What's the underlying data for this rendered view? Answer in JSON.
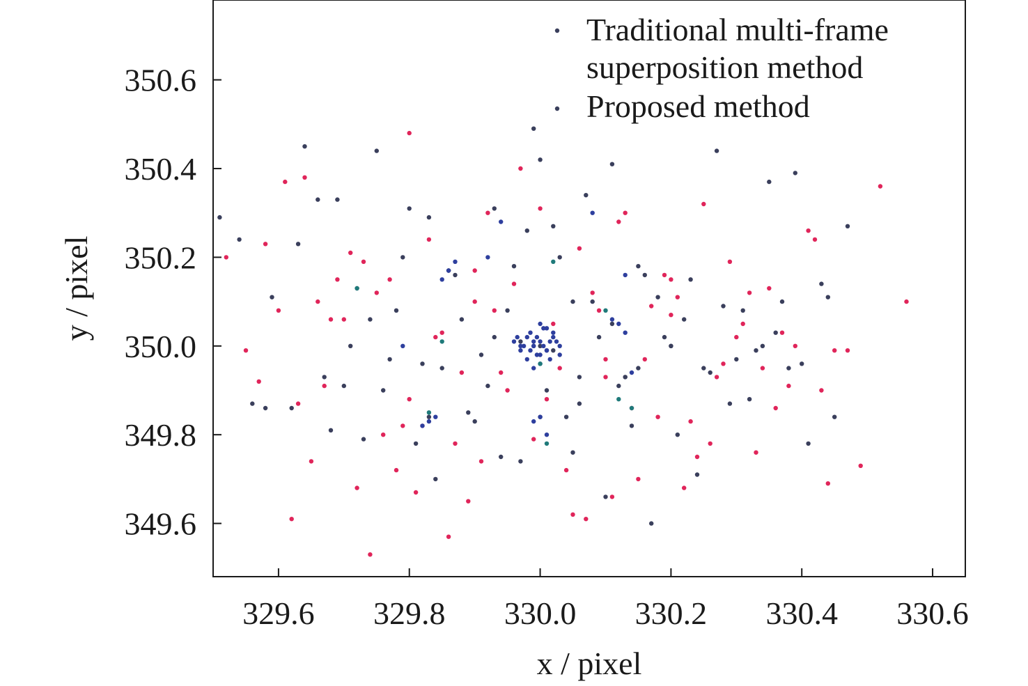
{
  "chart_data": {
    "type": "scatter",
    "xlabel": "x / pixel",
    "ylabel": "y / pixel",
    "xlim": [
      329.5,
      330.65
    ],
    "ylim": [
      349.48,
      350.78
    ],
    "x_ticks": [
      329.6,
      329.8,
      330.0,
      330.2,
      330.4,
      330.6
    ],
    "x_tick_labels": [
      "329.6",
      "329.8",
      "330.0",
      "330.2",
      "330.4",
      "330.6"
    ],
    "y_ticks": [
      349.6,
      349.8,
      350.0,
      350.2,
      350.4,
      350.6
    ],
    "y_tick_labels": [
      "349.6",
      "349.8",
      "350.0",
      "350.2",
      "350.4",
      "350.6"
    ],
    "grid": false,
    "legend": {
      "position": "top-right",
      "entries": [
        {
          "line1": "Traditional multi-frame",
          "line2": "superposition method",
          "color": "#3a3f5c"
        },
        {
          "line1": "Proposed method",
          "line2": "",
          "color": "#3a3f5c"
        }
      ]
    },
    "series": [
      {
        "color": "#e0255a",
        "x": [
          329.52,
          329.55,
          329.58,
          329.62,
          329.61,
          329.65,
          329.66,
          329.64,
          329.68,
          329.72,
          329.74,
          329.75,
          329.78,
          329.77,
          329.8,
          329.82,
          329.84,
          329.86,
          329.88,
          329.9,
          329.92,
          329.95,
          329.97,
          329.99,
          330.02,
          330.05,
          330.08,
          330.1,
          330.12,
          330.15,
          330.18,
          330.2,
          330.22,
          330.25,
          330.27,
          330.3,
          330.33,
          330.35,
          330.38,
          330.41,
          330.45,
          330.49,
          330.52,
          330.56,
          329.63,
          329.7,
          329.76,
          329.83,
          329.89,
          329.94,
          330.0,
          330.04,
          330.09,
          330.14,
          330.19,
          330.24,
          330.29,
          330.34,
          330.39,
          330.44,
          329.6,
          329.67,
          329.73,
          329.79,
          329.85,
          329.91,
          329.96,
          330.01,
          330.06,
          330.11,
          330.16,
          330.21,
          330.26,
          330.31,
          330.36,
          330.42,
          330.47,
          329.57,
          329.69,
          329.81,
          329.93,
          330.03,
          330.13,
          330.23,
          330.32,
          330.43,
          329.71,
          329.87,
          330.07,
          330.17,
          330.28,
          330.37,
          329.8,
          329.9,
          330.1,
          330.2
        ],
        "y": [
          350.2,
          349.99,
          350.23,
          349.61,
          350.37,
          349.74,
          350.1,
          350.38,
          350.06,
          349.68,
          349.53,
          350.12,
          349.72,
          350.15,
          350.48,
          349.82,
          350.02,
          349.57,
          349.94,
          350.17,
          350.3,
          349.9,
          350.4,
          349.79,
          350.05,
          349.62,
          350.12,
          349.97,
          350.28,
          349.7,
          349.84,
          350.07,
          349.68,
          350.32,
          349.93,
          350.02,
          349.76,
          350.13,
          349.91,
          350.26,
          349.99,
          349.73,
          350.36,
          350.1,
          349.87,
          350.06,
          349.8,
          350.24,
          349.65,
          349.94,
          350.31,
          349.72,
          350.08,
          349.86,
          350.16,
          349.75,
          350.19,
          349.95,
          350.0,
          349.69,
          350.08,
          349.91,
          350.19,
          349.82,
          350.03,
          349.74,
          350.14,
          349.88,
          350.22,
          349.66,
          349.97,
          350.11,
          349.78,
          350.05,
          349.86,
          350.24,
          349.99,
          349.92,
          350.15,
          349.67,
          350.08,
          349.95,
          350.3,
          349.83,
          350.12,
          349.9,
          350.21,
          349.78,
          349.61,
          350.09,
          349.96,
          350.03,
          349.88,
          350.1,
          349.93,
          350.15
        ]
      },
      {
        "color": "#3a3f5c",
        "x": [
          329.51,
          329.54,
          329.56,
          329.59,
          329.62,
          329.64,
          329.67,
          329.69,
          329.71,
          329.73,
          329.75,
          329.77,
          329.79,
          329.81,
          329.83,
          329.85,
          329.87,
          329.89,
          329.91,
          329.93,
          329.95,
          329.97,
          329.99,
          330.01,
          330.03,
          330.05,
          330.07,
          330.09,
          330.11,
          330.13,
          330.15,
          330.17,
          330.19,
          330.21,
          330.23,
          330.25,
          330.27,
          330.29,
          330.31,
          330.33,
          330.35,
          330.37,
          330.39,
          330.41,
          330.43,
          330.45,
          330.47,
          329.58,
          329.63,
          329.68,
          329.72,
          329.76,
          329.8,
          329.84,
          329.88,
          329.92,
          329.96,
          330.0,
          330.04,
          330.08,
          330.12,
          330.16,
          330.2,
          330.24,
          330.28,
          330.32,
          330.36,
          330.4,
          330.44,
          329.66,
          329.74,
          329.82,
          329.9,
          329.98,
          330.06,
          330.14,
          330.22,
          330.3,
          330.38,
          329.7,
          329.78,
          329.86,
          329.94,
          330.02,
          330.1,
          330.18,
          330.26,
          330.34,
          329.97,
          330.0,
          330.02,
          330.11,
          330.13,
          329.86,
          329.83,
          329.93,
          330.06,
          330.2,
          330.15,
          330.0,
          330.05,
          329.99
        ],
        "y": [
          350.29,
          350.24,
          349.87,
          350.11,
          349.86,
          350.45,
          349.93,
          350.33,
          350.0,
          349.79,
          350.44,
          349.97,
          350.2,
          349.78,
          350.29,
          349.95,
          350.16,
          349.85,
          349.98,
          350.31,
          350.08,
          349.74,
          350.49,
          349.9,
          350.2,
          349.76,
          350.34,
          350.02,
          350.41,
          349.93,
          350.18,
          349.6,
          350.02,
          349.8,
          350.15,
          349.95,
          350.44,
          349.87,
          350.08,
          349.99,
          350.37,
          350.1,
          350.39,
          349.78,
          350.14,
          349.84,
          350.27,
          349.86,
          350.23,
          349.81,
          350.13,
          349.9,
          350.31,
          349.7,
          350.06,
          349.91,
          350.18,
          350.42,
          349.84,
          350.1,
          349.91,
          350.16,
          350.0,
          349.71,
          350.09,
          349.88,
          350.03,
          349.96,
          350.11,
          350.33,
          350.06,
          349.96,
          349.83,
          350.26,
          349.93,
          349.82,
          350.06,
          349.97,
          349.95,
          349.91,
          350.08,
          350.17,
          349.75,
          350.27,
          349.66,
          350.11,
          349.94,
          350.0,
          350.01,
          350.0,
          349.99,
          350.05,
          349.93,
          350.17,
          349.84,
          350.02,
          349.87,
          350.0,
          349.95,
          349.84,
          350.1,
          350.0
        ]
      },
      {
        "color": "#2e3f9e",
        "x": [
          329.96,
          329.97,
          329.98,
          329.99,
          330.0,
          330.01,
          330.02,
          330.03,
          329.985,
          329.995,
          330.005,
          330.015,
          329.975,
          330.025,
          329.965,
          330.0,
          329.99,
          330.01,
          329.98,
          330.02,
          329.97,
          330.03,
          329.995,
          330.005,
          329.985,
          330.015,
          330.0,
          330.0,
          329.99,
          330.01,
          329.86,
          329.85,
          329.87,
          330.12,
          330.13,
          330.11,
          330.14,
          329.84,
          329.83,
          330.0,
          330.01,
          329.99,
          329.82,
          329.94,
          330.08,
          330.13,
          329.92,
          329.79
        ],
        "y": [
          350.01,
          349.99,
          350.02,
          350.0,
          350.01,
          349.99,
          350.02,
          350.0,
          350.03,
          349.98,
          350.04,
          349.97,
          350.0,
          350.01,
          350.02,
          349.98,
          350.01,
          349.99,
          349.97,
          350.03,
          350.0,
          349.98,
          350.02,
          350.0,
          349.99,
          350.01,
          350.05,
          349.96,
          349.95,
          350.04,
          350.17,
          350.15,
          350.19,
          350.05,
          350.03,
          350.06,
          349.94,
          349.84,
          349.83,
          349.84,
          349.8,
          349.83,
          349.82,
          350.28,
          350.3,
          350.16,
          350.2,
          350.0
        ]
      },
      {
        "color": "#1f7a7a",
        "x": [
          330.02,
          330.01,
          329.83,
          329.72,
          330.1,
          329.85,
          330.0,
          330.14,
          330.12
        ],
        "y": [
          350.19,
          349.78,
          349.85,
          350.13,
          350.08,
          350.01,
          349.96,
          349.86,
          349.88
        ]
      }
    ]
  }
}
